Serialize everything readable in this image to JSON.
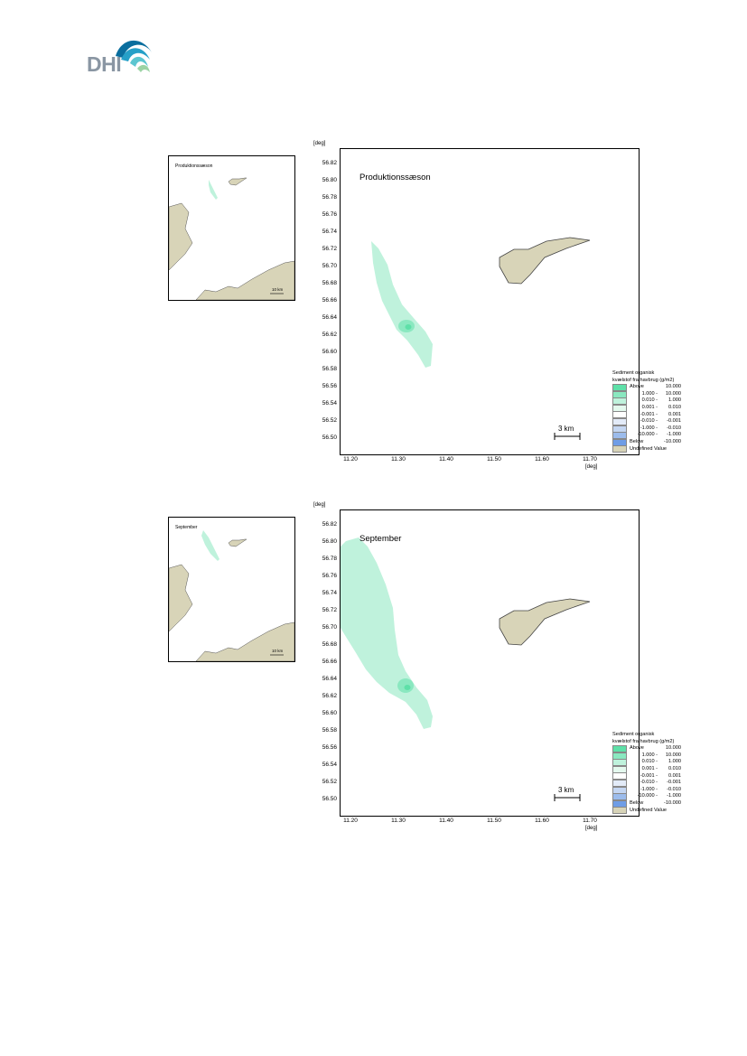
{
  "logo": {
    "text": "DHI",
    "colors": [
      "#0a6e9e",
      "#26a0c8",
      "#5cc6d0",
      "#9bd3a4"
    ]
  },
  "maps": [
    {
      "id": "produktion",
      "overview_title": "Produktionssæson",
      "overview_scale": "10 km",
      "title": "Produktionssæson",
      "y_unit": "[deg]",
      "x_unit": "[deg]",
      "y_ticks": [
        "56.82",
        "56.80",
        "56.78",
        "56.76",
        "56.74",
        "56.72",
        "56.70",
        "56.68",
        "56.66",
        "56.64",
        "56.62",
        "56.60",
        "56.58",
        "56.56",
        "56.54",
        "56.52",
        "56.50"
      ],
      "x_ticks": [
        "11.20",
        "11.30",
        "11.40",
        "11.50",
        "11.60",
        "11.70"
      ],
      "scale_bar": "3 km"
    },
    {
      "id": "september",
      "overview_title": "September",
      "overview_scale": "10 km",
      "title": "September",
      "y_unit": "[deg]",
      "x_unit": "[deg]",
      "y_ticks": [
        "56.82",
        "56.80",
        "56.78",
        "56.76",
        "56.74",
        "56.72",
        "56.70",
        "56.68",
        "56.66",
        "56.64",
        "56.62",
        "56.60",
        "56.58",
        "56.56",
        "56.54",
        "56.52",
        "56.50"
      ],
      "x_ticks": [
        "11.20",
        "11.30",
        "11.40",
        "11.50",
        "11.60",
        "11.70"
      ],
      "scale_bar": "3 km"
    }
  ],
  "legend": {
    "title_line1": "Sediment organisk",
    "title_line2": "kvælstof fra havbrug (g/m2)",
    "items": [
      {
        "lo": "Above",
        "hi": "10.000",
        "color": "#5ee0a8"
      },
      {
        "lo": "1.000 -",
        "hi": "10.000",
        "color": "#8ae8c0"
      },
      {
        "lo": "0.010 -",
        "hi": "1.000",
        "color": "#bff2dc"
      },
      {
        "lo": "0.001 -",
        "hi": "0.010",
        "color": "#e4f9ee"
      },
      {
        "lo": "-0.001 -",
        "hi": "0.001",
        "color": "#ffffff"
      },
      {
        "lo": "-0.010 -",
        "hi": "-0.001",
        "color": "#e3ebf8"
      },
      {
        "lo": "-1.000 -",
        "hi": "-0.010",
        "color": "#c4d6f2"
      },
      {
        "lo": "-10.000 -",
        "hi": "-1.000",
        "color": "#9cbcec"
      },
      {
        "lo": "Below",
        "hi": "-10.000",
        "color": "#6f9de6"
      }
    ],
    "undefined_label": "Undefined Value",
    "undefined_color": "#d8d4b8"
  }
}
